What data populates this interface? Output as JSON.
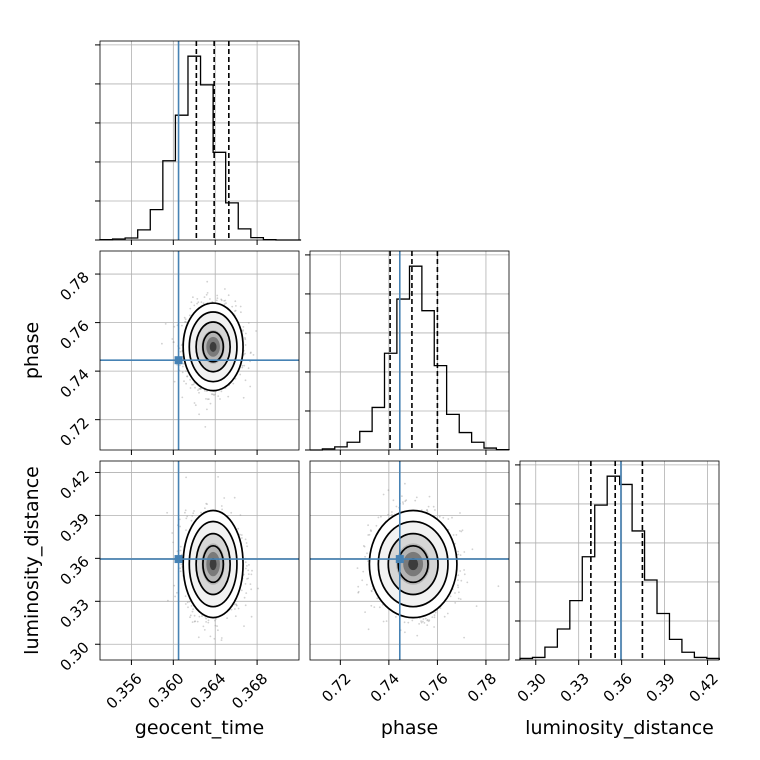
{
  "chart_data": {
    "type": "corner",
    "parameters": [
      {
        "key": "geocent_time",
        "label": "geocent_time",
        "range": [
          0.353,
          0.372
        ],
        "ticks": [
          "0.356",
          "0.360",
          "0.364",
          "0.368"
        ],
        "truth": 0.3605,
        "quantiles": [
          0.3622,
          0.3639,
          0.3653
        ]
      },
      {
        "key": "phase",
        "label": "phase",
        "range": [
          0.7075,
          0.7895
        ],
        "ticks": [
          "0.72",
          "0.74",
          "0.76",
          "0.78"
        ],
        "truth": 0.7445,
        "quantiles": [
          0.7405,
          0.7495,
          0.76
        ]
      },
      {
        "key": "luminosity_distance",
        "label": "luminosity_distance",
        "range": [
          0.289,
          0.428
        ],
        "ticks": [
          "0.30",
          "0.33",
          "0.36",
          "0.39",
          "0.42"
        ],
        "truth": 0.3595,
        "quantiles": [
          0.3385,
          0.3555,
          0.3745
        ]
      }
    ],
    "truth_color": "#4682b4",
    "grid": true,
    "histograms": {
      "geocent_time": {
        "bins": [
          0.353,
          0.3542,
          0.3554,
          0.3566,
          0.3578,
          0.359,
          0.3602,
          0.3614,
          0.3626,
          0.3638,
          0.365,
          0.3662,
          0.3674,
          0.3686,
          0.3698,
          0.371,
          0.3722
        ],
        "counts": [
          1,
          3,
          6,
          30,
          90,
          235,
          370,
          545,
          460,
          260,
          110,
          33,
          7,
          1,
          0,
          0
        ]
      },
      "phase": {
        "bins": [
          0.7075,
          0.7126,
          0.7177,
          0.7228,
          0.728,
          0.7331,
          0.7382,
          0.7433,
          0.7485,
          0.7536,
          0.7587,
          0.7638,
          0.769,
          0.7741,
          0.7792,
          0.7843,
          0.7895
        ],
        "counts": [
          0,
          3,
          8,
          20,
          48,
          110,
          250,
          390,
          475,
          360,
          218,
          92,
          45,
          20,
          5,
          1
        ]
      },
      "luminosity_distance": {
        "bins": [
          0.289,
          0.2977,
          0.3064,
          0.3151,
          0.3238,
          0.3325,
          0.3412,
          0.3499,
          0.3586,
          0.3673,
          0.376,
          0.3847,
          0.3934,
          0.4021,
          0.4108,
          0.4195,
          0.4282
        ],
        "counts": [
          3,
          5,
          25,
          60,
          115,
          200,
          300,
          356,
          340,
          250,
          155,
          90,
          40,
          15,
          5,
          3
        ]
      }
    },
    "density_2d": [
      {
        "x": "geocent_time",
        "y": "phase",
        "center": [
          0.3638,
          0.75
        ],
        "spread": [
          0.0013,
          0.0082
        ]
      },
      {
        "x": "geocent_time",
        "y": "luminosity_distance",
        "center": [
          0.3638,
          0.356
        ],
        "spread": [
          0.0013,
          0.017
        ]
      },
      {
        "x": "phase",
        "y": "luminosity_distance",
        "center": [
          0.75,
          0.356
        ],
        "spread": [
          0.0082,
          0.017
        ]
      }
    ]
  }
}
